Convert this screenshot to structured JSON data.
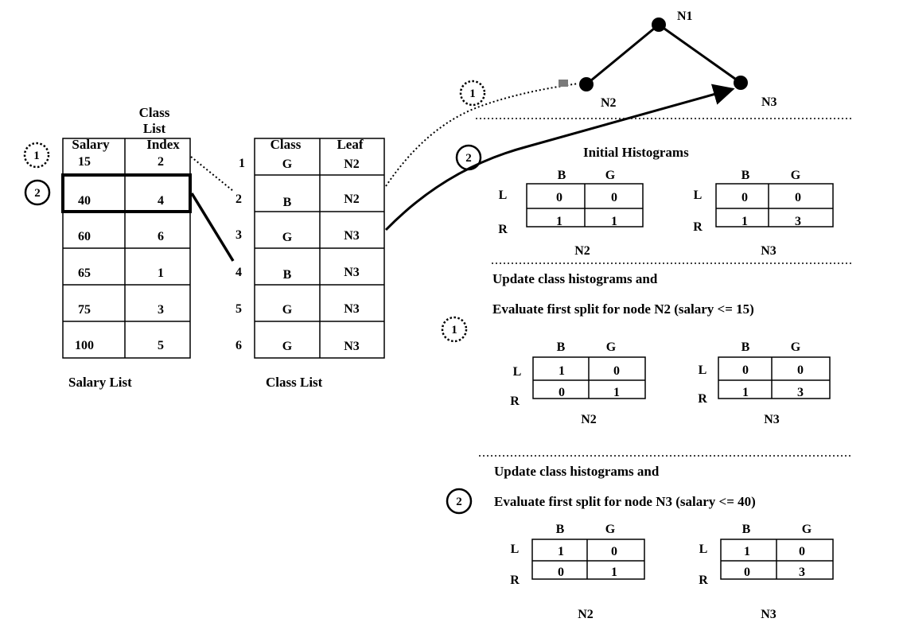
{
  "salary_list": {
    "headers": {
      "salary": "Salary",
      "index_line1": "Class",
      "index_line2": "List",
      "index_line3": "Index"
    },
    "rows": [
      {
        "salary": "15",
        "index": "2"
      },
      {
        "salary": "40",
        "index": "4"
      },
      {
        "salary": "60",
        "index": "6"
      },
      {
        "salary": "65",
        "index": "1"
      },
      {
        "salary": "75",
        "index": "3"
      },
      {
        "salary": "100",
        "index": "5"
      }
    ],
    "caption": "Salary List"
  },
  "class_list": {
    "headers": {
      "class": "Class",
      "leaf": "Leaf"
    },
    "rows": [
      {
        "num": "1",
        "class": "G",
        "leaf": "N2"
      },
      {
        "num": "2",
        "class": "B",
        "leaf": "N2"
      },
      {
        "num": "3",
        "class": "G",
        "leaf": "N3"
      },
      {
        "num": "4",
        "class": "B",
        "leaf": "N3"
      },
      {
        "num": "5",
        "class": "G",
        "leaf": "N3"
      },
      {
        "num": "6",
        "class": "G",
        "leaf": "N3"
      }
    ],
    "caption": "Class List"
  },
  "step_markers": {
    "one": "1",
    "two": "2"
  },
  "tree": {
    "root": "N1",
    "left": "N2",
    "right": "N3"
  },
  "sections": {
    "initial": {
      "title": "Initial Histograms",
      "histograms": [
        {
          "name": "N2",
          "cols": [
            "B",
            "G"
          ],
          "rows": [
            {
              "label": "L",
              "values": [
                "0",
                "0"
              ]
            },
            {
              "label": "R",
              "values": [
                "1",
                "1"
              ]
            }
          ]
        },
        {
          "name": "N3",
          "cols": [
            "B",
            "G"
          ],
          "rows": [
            {
              "label": "L",
              "values": [
                "0",
                "0"
              ]
            },
            {
              "label": "R",
              "values": [
                "1",
                "3"
              ]
            }
          ]
        }
      ]
    },
    "step1": {
      "line1": "Update class histograms and",
      "line2": "Evaluate first split for node N2 (salary <= 15)",
      "histograms": [
        {
          "name": "N2",
          "cols": [
            "B",
            "G"
          ],
          "rows": [
            {
              "label": "L",
              "values": [
                "1",
                "0"
              ]
            },
            {
              "label": "R",
              "values": [
                "0",
                "1"
              ]
            }
          ]
        },
        {
          "name": "N3",
          "cols": [
            "B",
            "G"
          ],
          "rows": [
            {
              "label": "L",
              "values": [
                "0",
                "0"
              ]
            },
            {
              "label": "R",
              "values": [
                "1",
                "3"
              ]
            }
          ]
        }
      ]
    },
    "step2": {
      "line1": "Update class histograms and",
      "line2": "Evaluate first split for node N3 (salary <= 40)",
      "histograms": [
        {
          "name": "N2",
          "cols": [
            "B",
            "G"
          ],
          "rows": [
            {
              "label": "L",
              "values": [
                "1",
                "0"
              ]
            },
            {
              "label": "R",
              "values": [
                "0",
                "1"
              ]
            }
          ]
        },
        {
          "name": "N3",
          "cols": [
            "B",
            "G"
          ],
          "rows": [
            {
              "label": "L",
              "values": [
                "1",
                "0"
              ]
            },
            {
              "label": "R",
              "values": [
                "0",
                "3"
              ]
            }
          ]
        }
      ]
    }
  }
}
